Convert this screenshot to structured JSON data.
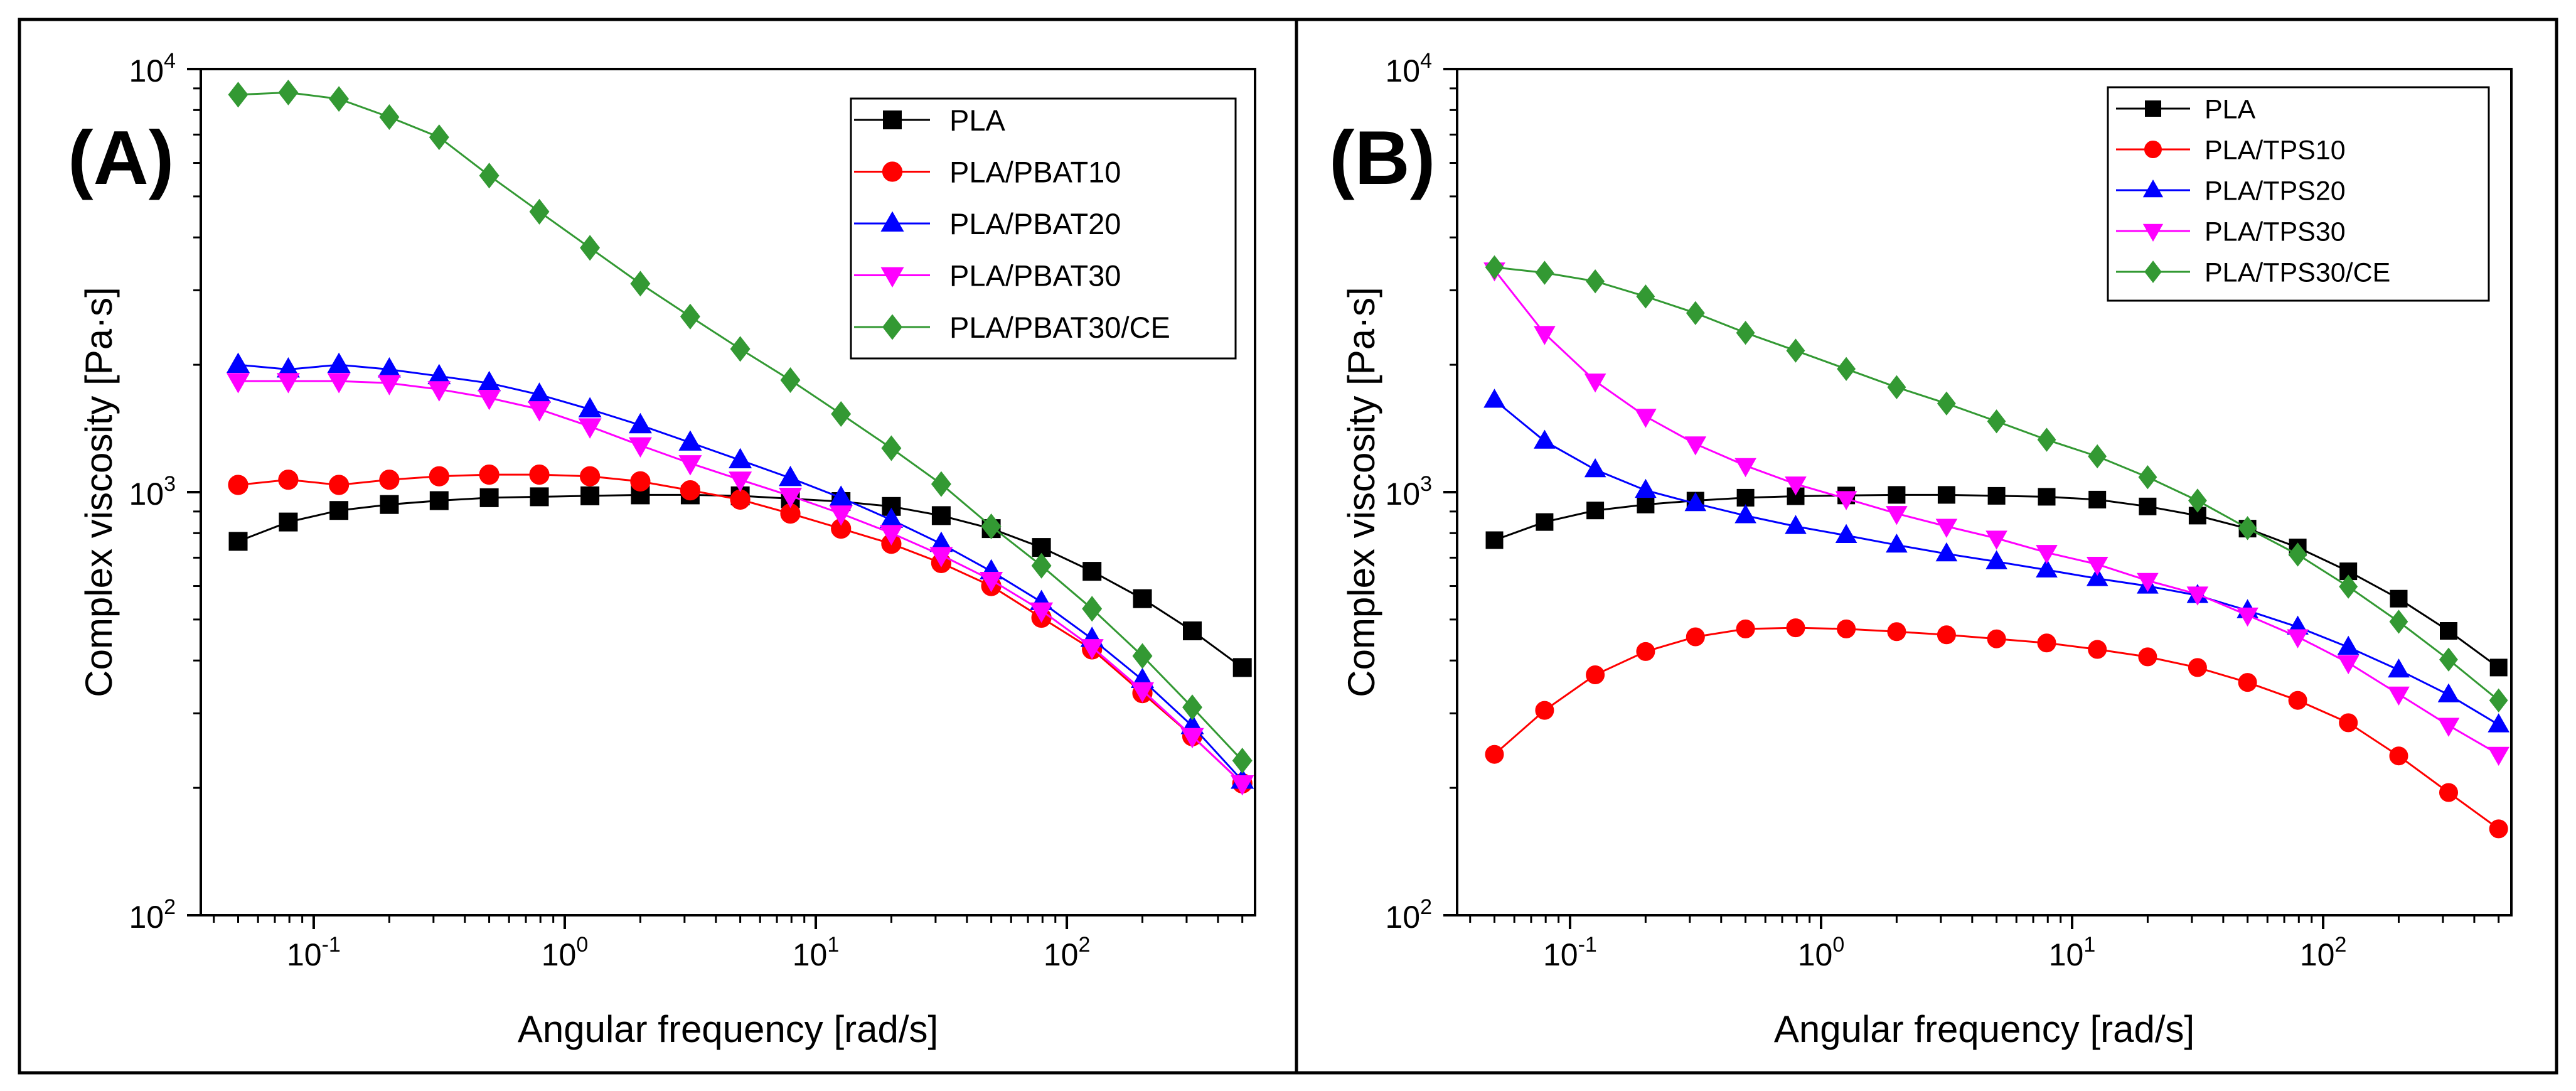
{
  "chart_data": [
    {
      "type": "line",
      "panel_label": "(A)",
      "xlabel": "Angular frequency [rad/s]",
      "ylabel": "Complex viscosity [Pa·s]",
      "xscale": "log",
      "yscale": "log",
      "xlim": [
        0.0355,
        562
      ],
      "ylim": [
        100,
        10000
      ],
      "grid": false,
      "legend": "top-right",
      "xticks": [
        {
          "value": 0.1,
          "base": "10",
          "exp": "-1"
        },
        {
          "value": 1,
          "base": "10",
          "exp": "0"
        },
        {
          "value": 10,
          "base": "10",
          "exp": "1"
        },
        {
          "value": 100,
          "base": "10",
          "exp": "2"
        }
      ],
      "yticks": [
        {
          "value": 100,
          "base": "10",
          "exp": "2"
        },
        {
          "value": 1000,
          "base": "10",
          "exp": "3"
        },
        {
          "value": 10000,
          "base": "10",
          "exp": "4"
        }
      ],
      "x": [
        0.05,
        0.0792,
        0.126,
        0.2,
        0.316,
        0.5,
        0.792,
        1.26,
        2,
        3.16,
        5,
        7.92,
        12.6,
        20,
        31.6,
        50,
        79.2,
        126,
        200,
        316,
        500
      ],
      "series": [
        {
          "name": "PLA",
          "color": "#000000",
          "marker": "square",
          "values": [
            765,
            850,
            905,
            935,
            955,
            970,
            975,
            980,
            985,
            985,
            980,
            965,
            950,
            925,
            880,
            820,
            740,
            650,
            560,
            470,
            385
          ]
        },
        {
          "name": "PLA/PBAT10",
          "color": "#ff0000",
          "marker": "circle",
          "values": [
            1040,
            1070,
            1040,
            1070,
            1090,
            1100,
            1100,
            1090,
            1060,
            1010,
            960,
            890,
            820,
            755,
            680,
            600,
            505,
            425,
            335,
            265,
            205
          ]
        },
        {
          "name": "PLA/PBAT20",
          "color": "#0000ff",
          "marker": "triangle-up",
          "values": [
            2000,
            1950,
            2000,
            1950,
            1880,
            1810,
            1700,
            1570,
            1440,
            1310,
            1190,
            1080,
            970,
            860,
            755,
            650,
            550,
            450,
            360,
            280,
            208
          ]
        },
        {
          "name": "PLA/PBAT30",
          "color": "#ff00ff",
          "marker": "triangle-down",
          "values": [
            1830,
            1830,
            1830,
            1810,
            1750,
            1670,
            1570,
            1430,
            1290,
            1170,
            1070,
            980,
            890,
            800,
            710,
            620,
            525,
            430,
            340,
            265,
            205
          ]
        },
        {
          "name": "PLA/PBAT30/CE",
          "color": "#339933",
          "marker": "diamond",
          "values": [
            8700,
            8800,
            8500,
            7700,
            6900,
            5600,
            4600,
            3780,
            3110,
            2600,
            2180,
            1840,
            1530,
            1270,
            1045,
            830,
            670,
            530,
            410,
            310,
            232
          ]
        }
      ]
    },
    {
      "type": "line",
      "panel_label": "(B)",
      "xlabel": "Angular frequency [rad/s]",
      "ylabel": "Complex viscosity [Pa·s]",
      "xscale": "log",
      "yscale": "log",
      "xlim": [
        0.0355,
        562
      ],
      "ylim": [
        100,
        10000
      ],
      "grid": false,
      "legend": "top-right",
      "xticks": [
        {
          "value": 0.1,
          "base": "10",
          "exp": "-1"
        },
        {
          "value": 1,
          "base": "10",
          "exp": "0"
        },
        {
          "value": 10,
          "base": "10",
          "exp": "1"
        },
        {
          "value": 100,
          "base": "10",
          "exp": "2"
        }
      ],
      "yticks": [
        {
          "value": 100,
          "base": "10",
          "exp": "2"
        },
        {
          "value": 1000,
          "base": "10",
          "exp": "3"
        },
        {
          "value": 10000,
          "base": "10",
          "exp": "4"
        }
      ],
      "x": [
        0.05,
        0.0792,
        0.126,
        0.2,
        0.316,
        0.5,
        0.792,
        1.26,
        2,
        3.16,
        5,
        7.92,
        12.6,
        20,
        31.6,
        50,
        79.2,
        126,
        200,
        316,
        500
      ],
      "series": [
        {
          "name": "PLA",
          "color": "#000000",
          "marker": "square",
          "values": [
            770,
            850,
            905,
            935,
            955,
            970,
            978,
            982,
            985,
            985,
            980,
            975,
            960,
            925,
            880,
            820,
            740,
            650,
            560,
            470,
            385
          ]
        },
        {
          "name": "PLA/TPS10",
          "color": "#ff0000",
          "marker": "circle",
          "values": [
            240,
            305,
            370,
            420,
            455,
            475,
            478,
            475,
            468,
            460,
            450,
            440,
            425,
            408,
            385,
            355,
            322,
            285,
            238,
            195,
            160
          ]
        },
        {
          "name": "PLA/TPS20",
          "color": "#0000ff",
          "marker": "triangle-up",
          "values": [
            1650,
            1320,
            1130,
            1010,
            940,
            880,
            830,
            790,
            750,
            715,
            685,
            655,
            625,
            600,
            570,
            525,
            480,
            430,
            380,
            332,
            282
          ]
        },
        {
          "name": "PLA/TPS30",
          "color": "#ff00ff",
          "marker": "triangle-down",
          "values": [
            3350,
            2370,
            1830,
            1510,
            1300,
            1155,
            1045,
            965,
            890,
            830,
            778,
            720,
            675,
            618,
            574,
            512,
            455,
            395,
            333,
            281,
            240
          ]
        },
        {
          "name": "PLA/TPS30/CE",
          "color": "#339933",
          "marker": "diamond",
          "values": [
            3400,
            3300,
            3150,
            2900,
            2650,
            2380,
            2160,
            1955,
            1770,
            1620,
            1470,
            1330,
            1215,
            1085,
            955,
            822,
            712,
            598,
            494,
            402,
            322
          ]
        }
      ]
    }
  ]
}
